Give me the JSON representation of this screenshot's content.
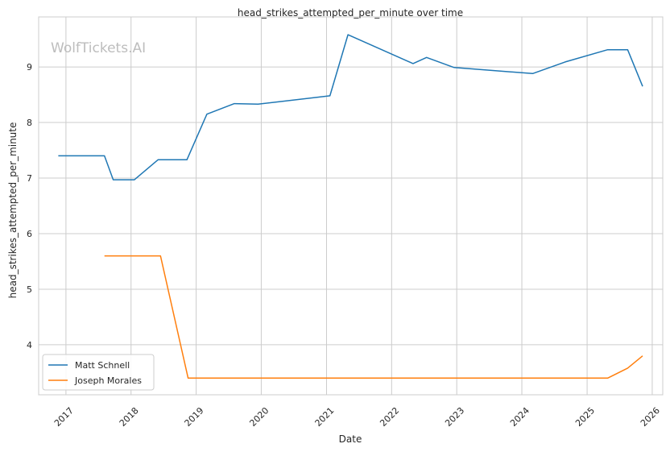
{
  "chart_data": {
    "type": "line",
    "title": "head_strikes_attempted_per_minute over time",
    "xlabel": "Date",
    "ylabel": "head_strikes_attempted_per_minute",
    "watermark": "WolfTickets.AI",
    "legend_position": "lower-left",
    "grid": true,
    "xlim": [
      "2016-08-01",
      "2026-03-01"
    ],
    "ylim": [
      3.1,
      9.9
    ],
    "x_ticks": [
      "2017",
      "2018",
      "2019",
      "2020",
      "2021",
      "2022",
      "2023",
      "2024",
      "2025",
      "2026"
    ],
    "y_ticks": [
      4,
      5,
      6,
      7,
      8,
      9
    ],
    "series": [
      {
        "name": "Matt Schnell",
        "color": "#1f77b4",
        "points": [
          {
            "x": "2016-11-19",
            "y": 7.4
          },
          {
            "x": "2017-08-05",
            "y": 7.4
          },
          {
            "x": "2017-09-23",
            "y": 6.97
          },
          {
            "x": "2018-01-20",
            "y": 6.97
          },
          {
            "x": "2018-06-01",
            "y": 7.33
          },
          {
            "x": "2018-11-10",
            "y": 7.33
          },
          {
            "x": "2019-03-02",
            "y": 8.15
          },
          {
            "x": "2019-08-03",
            "y": 8.34
          },
          {
            "x": "2019-12-14",
            "y": 8.33
          },
          {
            "x": "2021-01-20",
            "y": 8.48
          },
          {
            "x": "2021-05-01",
            "y": 9.58
          },
          {
            "x": "2022-05-01",
            "y": 9.06
          },
          {
            "x": "2022-07-16",
            "y": 9.17
          },
          {
            "x": "2022-12-17",
            "y": 8.99
          },
          {
            "x": "2024-03-02",
            "y": 8.88
          },
          {
            "x": "2024-08-31",
            "y": 9.09
          },
          {
            "x": "2025-04-26",
            "y": 9.31
          },
          {
            "x": "2025-08-16",
            "y": 9.31
          },
          {
            "x": "2025-11-08",
            "y": 8.65
          }
        ]
      },
      {
        "name": "Joseph Morales",
        "color": "#ff7f0e",
        "points": [
          {
            "x": "2017-08-05",
            "y": 5.6
          },
          {
            "x": "2018-06-15",
            "y": 5.6
          },
          {
            "x": "2018-11-17",
            "y": 3.4
          },
          {
            "x": "2025-04-26",
            "y": 3.4
          },
          {
            "x": "2025-08-16",
            "y": 3.58
          },
          {
            "x": "2025-11-08",
            "y": 3.8
          }
        ]
      }
    ]
  }
}
